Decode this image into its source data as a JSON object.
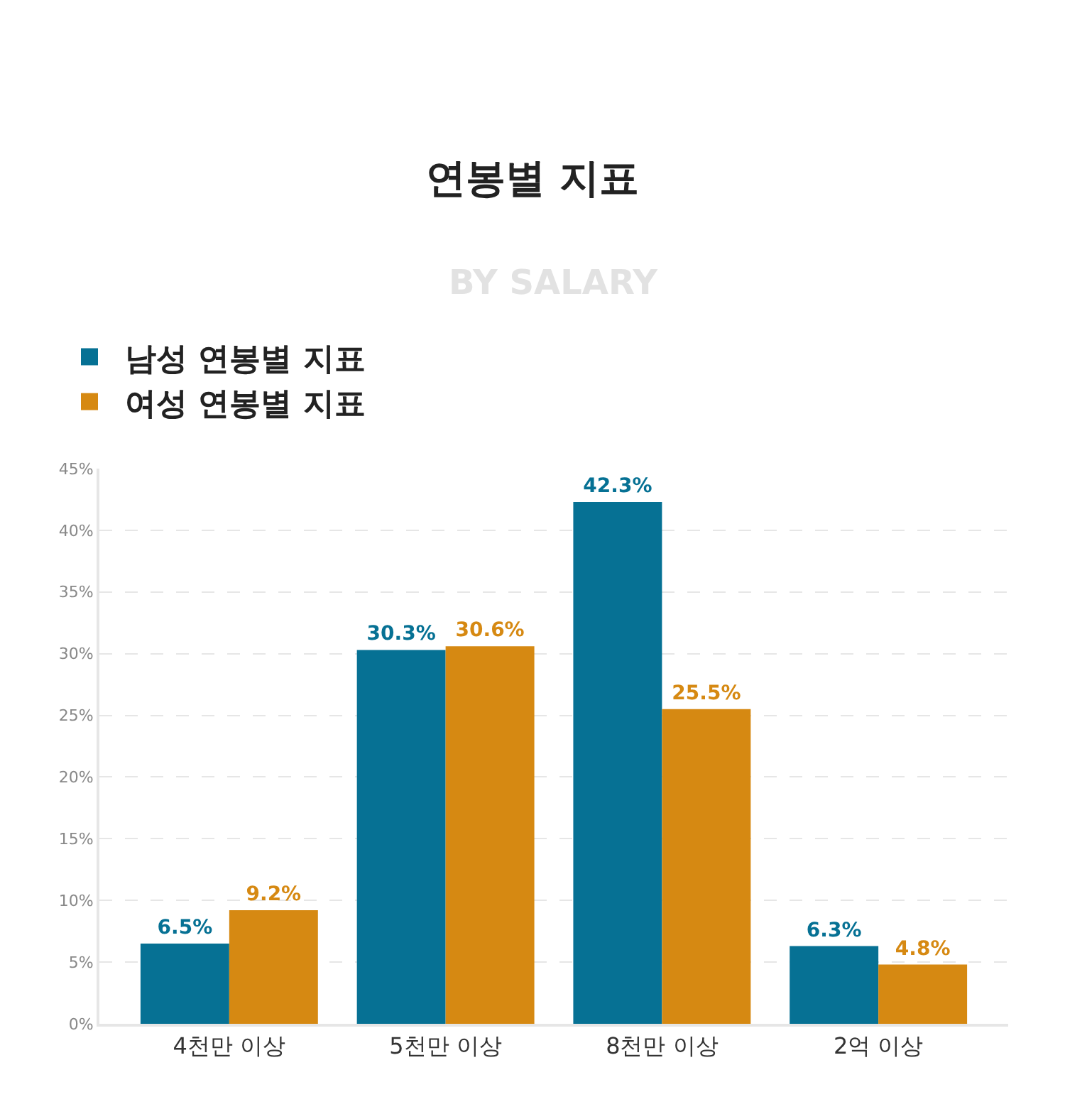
{
  "chart_data": {
    "type": "bar",
    "title": "연봉별 지표",
    "subtitle": "BY SALARY",
    "categories": [
      "4천만 이상",
      "5천만 이상",
      "8천만 이상",
      "2억 이상"
    ],
    "series": [
      {
        "name": "남성 연봉별 지표",
        "color": "#067194",
        "values": [
          6.5,
          30.3,
          42.3,
          6.3
        ],
        "value_labels": [
          "6.5%",
          "30.3%",
          "42.3%",
          "6.3%"
        ]
      },
      {
        "name": "여성 연봉별 지표",
        "color": "#d68912",
        "values": [
          9.2,
          30.6,
          25.5,
          4.8
        ],
        "value_labels": [
          "9.2%",
          "30.6%",
          "25.5%",
          "4.8%"
        ]
      }
    ],
    "ylim": [
      0,
      45
    ],
    "yticks": [
      {
        "value": 0,
        "label": "0%"
      },
      {
        "value": 5,
        "label": "5%"
      },
      {
        "value": 10,
        "label": "10%"
      },
      {
        "value": 15,
        "label": "15%"
      },
      {
        "value": 20,
        "label": "20%"
      },
      {
        "value": 25,
        "label": "25%"
      },
      {
        "value": 30,
        "label": "30%"
      },
      {
        "value": 35,
        "label": "35%"
      },
      {
        "value": 40,
        "label": "40%"
      },
      {
        "value": 45,
        "label": "45%"
      }
    ],
    "grid": "y",
    "legend": "top"
  }
}
